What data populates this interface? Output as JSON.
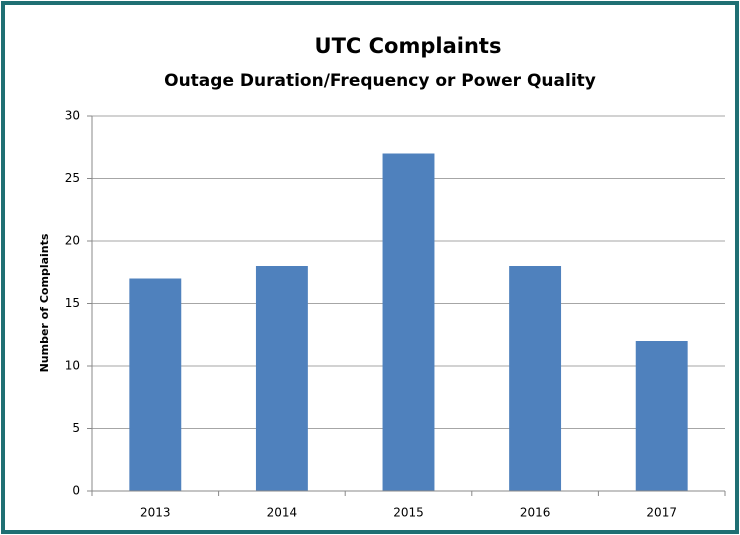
{
  "chart_data": {
    "type": "bar",
    "title": "UTC Complaints",
    "subtitle": "Outage Duration/Frequency or Power Quality",
    "y_label": "Number of Complaints",
    "categories": [
      "2013",
      "2014",
      "2015",
      "2016",
      "2017"
    ],
    "values": [
      17,
      18,
      27,
      18,
      12
    ],
    "color": "#4f81bd",
    "ylim": [
      0,
      30
    ],
    "yticks": [
      0,
      5,
      10,
      15,
      20,
      25,
      30
    ],
    "grid": true
  }
}
